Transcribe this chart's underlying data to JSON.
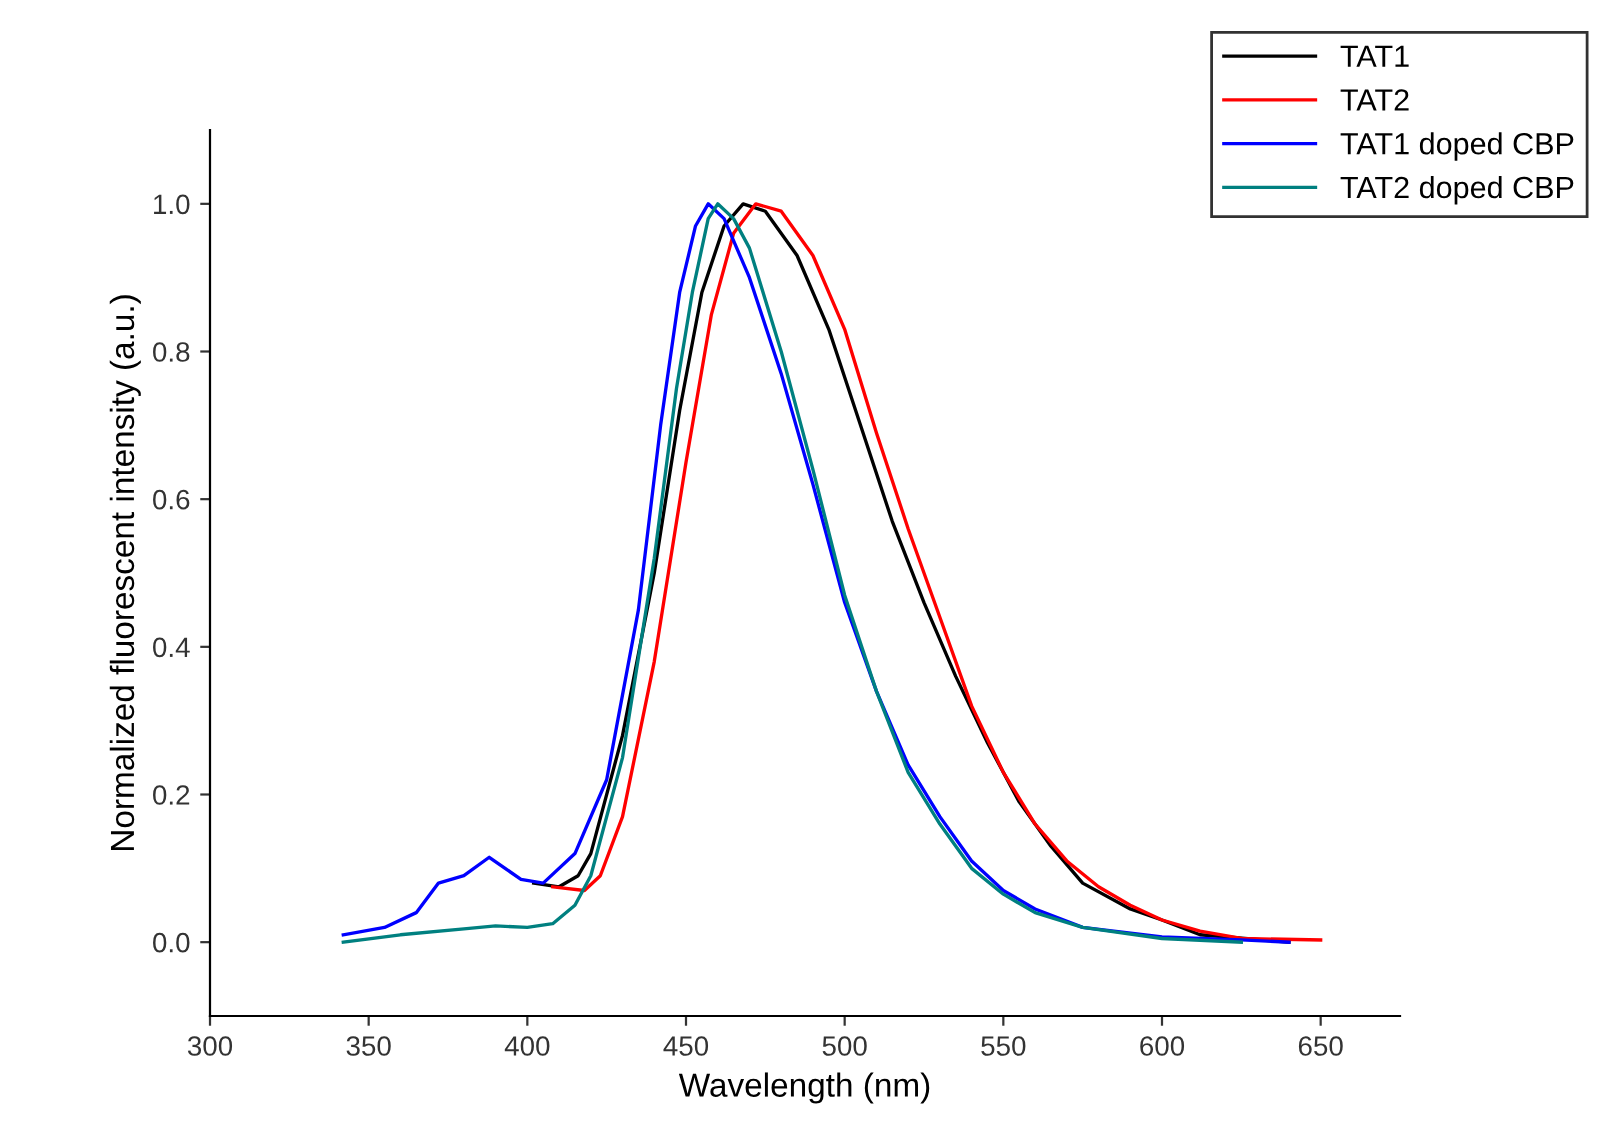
{
  "chart_data": {
    "type": "line",
    "xlabel": "Wavelength (nm)",
    "ylabel": "Normalized fluorescent intensity (a.u.)",
    "xlim": [
      300,
      675
    ],
    "ylim": [
      -0.1,
      1.1
    ],
    "xticks": [
      300,
      350,
      400,
      450,
      500,
      550,
      600,
      650
    ],
    "yticks": [
      {
        "value": 0,
        "label": "0.0"
      },
      {
        "value": 0.2,
        "label": "0.2"
      },
      {
        "value": 0.4,
        "label": "0.4"
      },
      {
        "value": 0.6,
        "label": "0.6"
      },
      {
        "value": 0.8,
        "label": "0.8"
      },
      {
        "value": 1,
        "label": "1.0"
      }
    ],
    "grid": false,
    "legend": "top right",
    "marker": "none",
    "line_style": "solid",
    "series": [
      {
        "name": "TAT1",
        "color": "#000000",
        "x": [
          402,
          410,
          416,
          420,
          430,
          440,
          448,
          455,
          462,
          468,
          475,
          485,
          495,
          505,
          515,
          525,
          535,
          545,
          555,
          565,
          575,
          590,
          600,
          612,
          640
        ],
        "values": [
          0.08,
          0.075,
          0.09,
          0.12,
          0.28,
          0.5,
          0.72,
          0.88,
          0.97,
          1.0,
          0.99,
          0.93,
          0.83,
          0.7,
          0.57,
          0.46,
          0.36,
          0.27,
          0.19,
          0.13,
          0.08,
          0.045,
          0.03,
          0.01,
          0.0
        ]
      },
      {
        "name": "TAT2",
        "color": "#ff0000",
        "x": [
          408,
          418,
          423,
          430,
          440,
          450,
          458,
          465,
          472,
          480,
          490,
          500,
          510,
          520,
          530,
          540,
          550,
          560,
          570,
          580,
          590,
          600,
          612,
          625,
          650
        ],
        "values": [
          0.075,
          0.07,
          0.09,
          0.17,
          0.38,
          0.65,
          0.85,
          0.96,
          1.0,
          0.99,
          0.93,
          0.83,
          0.69,
          0.56,
          0.44,
          0.32,
          0.23,
          0.16,
          0.11,
          0.075,
          0.05,
          0.03,
          0.015,
          0.005,
          0.003
        ]
      },
      {
        "name": "TAT1 doped CBP",
        "color": "#0000ff",
        "x": [
          342,
          355,
          365,
          372,
          380,
          388,
          393,
          398,
          405,
          415,
          425,
          435,
          442,
          448,
          453,
          457,
          462,
          470,
          480,
          490,
          500,
          510,
          520,
          530,
          540,
          550,
          560,
          575,
          600,
          625,
          640
        ],
        "values": [
          0.01,
          0.02,
          0.04,
          0.08,
          0.09,
          0.115,
          0.1,
          0.085,
          0.08,
          0.12,
          0.22,
          0.45,
          0.7,
          0.88,
          0.97,
          1.0,
          0.98,
          0.9,
          0.77,
          0.62,
          0.46,
          0.34,
          0.24,
          0.17,
          0.11,
          0.07,
          0.045,
          0.02,
          0.007,
          0.003,
          0.0
        ]
      },
      {
        "name": "TAT2 doped CBP",
        "color": "#008080",
        "x": [
          342,
          360,
          380,
          390,
          400,
          408,
          415,
          420,
          430,
          440,
          447,
          452,
          457,
          460,
          465,
          470,
          480,
          490,
          500,
          510,
          520,
          530,
          540,
          550,
          560,
          575,
          600,
          625
        ],
        "values": [
          0.0,
          0.01,
          0.018,
          0.022,
          0.02,
          0.025,
          0.05,
          0.09,
          0.25,
          0.52,
          0.75,
          0.88,
          0.98,
          1.0,
          0.98,
          0.94,
          0.8,
          0.64,
          0.47,
          0.34,
          0.23,
          0.16,
          0.1,
          0.065,
          0.04,
          0.02,
          0.005,
          0.0
        ]
      }
    ]
  }
}
